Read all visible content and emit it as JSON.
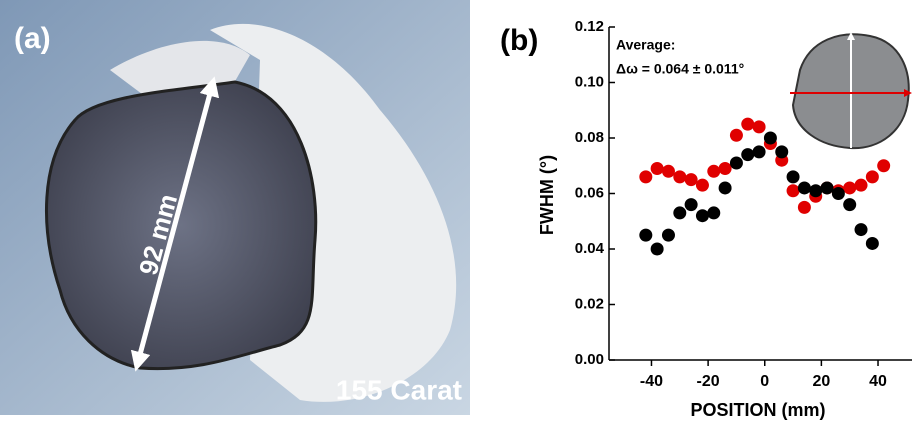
{
  "photo": {
    "panel_label": "(a)",
    "dimension": "92 mm",
    "caption": "155 Carat"
  },
  "chart_data": {
    "type": "scatter",
    "panel_label": "(b)",
    "annotations": [
      "Average:",
      "Δω = 0.064 ± 0.011°"
    ],
    "xlabel": "POSITION (mm)",
    "ylabel": "FWHM (°)",
    "xlim": [
      -55,
      52
    ],
    "ylim": [
      0,
      0.12
    ],
    "xticks": [
      -40,
      -20,
      0,
      20,
      40
    ],
    "yticks": [
      {
        "value": 0,
        "label": "0.00"
      },
      {
        "value": 0.02,
        "label": "0.02"
      },
      {
        "value": 0.04,
        "label": "0.04"
      },
      {
        "value": 0.06,
        "label": "0.06"
      },
      {
        "value": 0.08,
        "label": "0.08"
      },
      {
        "value": 0.1,
        "label": "0.10"
      },
      {
        "value": 0.12,
        "label": "0.12"
      }
    ],
    "series": [
      {
        "color": "#e00000",
        "x": [
          -42,
          -38,
          -34,
          -30,
          -26,
          -22,
          -18,
          -14,
          -10,
          -6,
          -2,
          2,
          6,
          10,
          14,
          18,
          22,
          26,
          30,
          34,
          38,
          42
        ],
        "values": [
          0.066,
          0.069,
          0.068,
          0.066,
          0.065,
          0.063,
          0.068,
          0.069,
          0.081,
          0.085,
          0.084,
          0.078,
          0.072,
          0.061,
          0.055,
          0.059,
          0.062,
          0.061,
          0.062,
          0.063,
          0.066,
          0.07
        ]
      },
      {
        "color": "#000000",
        "x": [
          -42,
          -38,
          -34,
          -30,
          -26,
          -22,
          -18,
          -14,
          -10,
          -6,
          -2,
          2,
          6,
          10,
          14,
          18,
          22,
          26,
          30,
          34,
          38
        ],
        "values": [
          0.045,
          0.04,
          0.045,
          0.053,
          0.056,
          0.052,
          0.053,
          0.062,
          0.071,
          0.074,
          0.075,
          0.08,
          0.075,
          0.066,
          0.062,
          0.061,
          0.062,
          0.06,
          0.056,
          0.047,
          0.042
        ]
      }
    ]
  }
}
